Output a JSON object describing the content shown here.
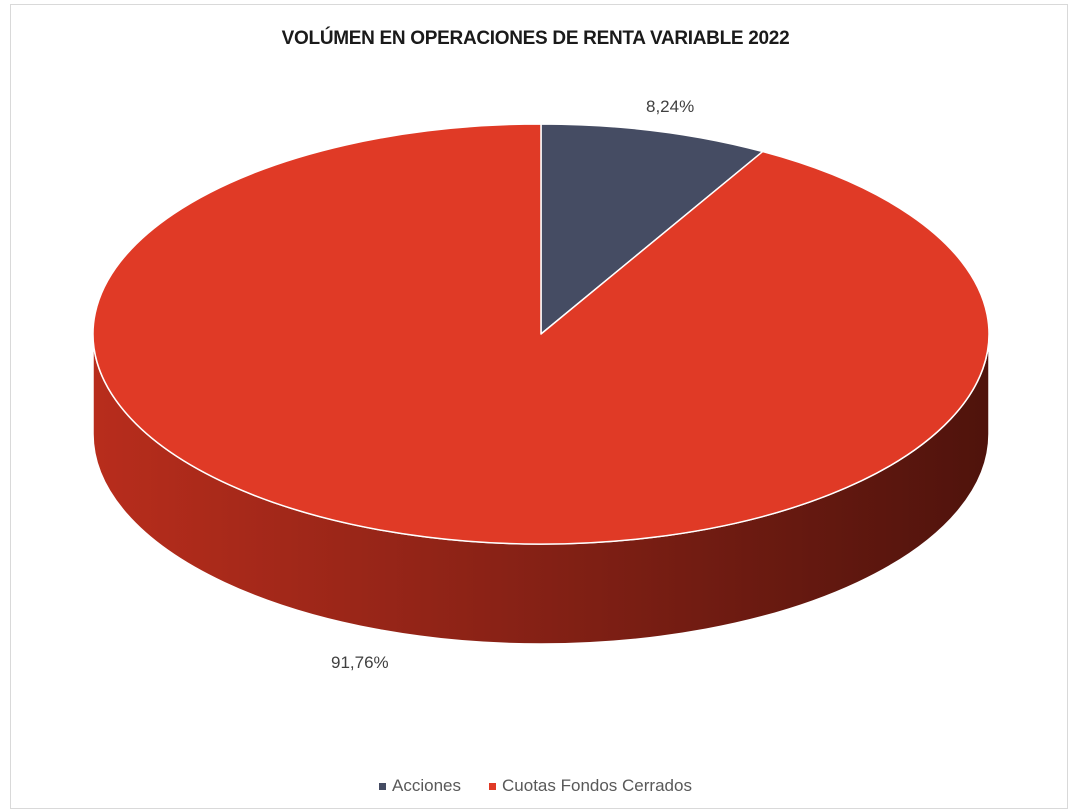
{
  "chart_data": {
    "type": "pie",
    "title": "VOLÚMEN EN OPERACIONES DE RENTA VARIABLE 2022",
    "slices": [
      {
        "name": "Acciones",
        "value": 8.24,
        "label": "8,24%",
        "color": "#454c63"
      },
      {
        "name": "Cuotas Fondos Cerrados",
        "value": 91.76,
        "label": "91,76%",
        "color": "#e03a26"
      }
    ],
    "legend_position": "bottom",
    "style": "3d"
  }
}
